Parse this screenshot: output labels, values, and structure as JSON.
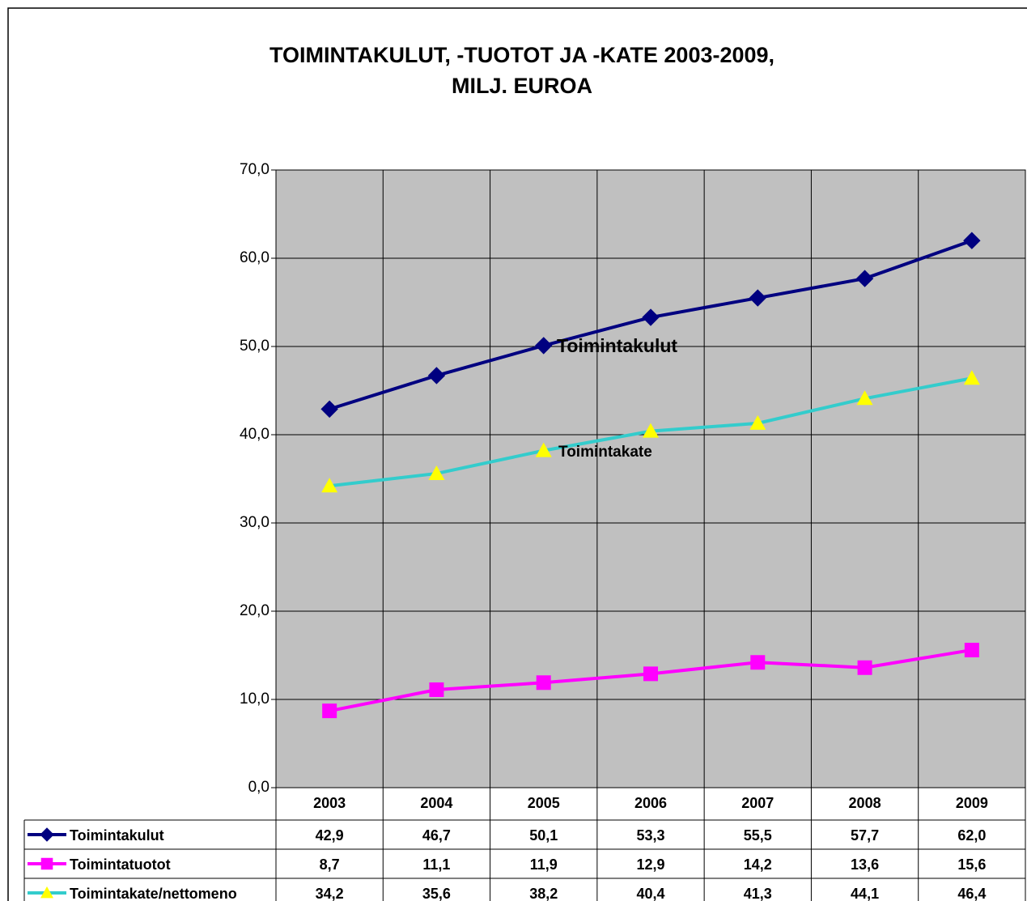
{
  "chart_data": {
    "type": "line",
    "title": [
      "TOIMINTAKULUT, -TUOTOT JA -KATE 2003-2009,",
      "MILJ. EUROA"
    ],
    "categories": [
      "2003",
      "2004",
      "2005",
      "2006",
      "2007",
      "2008",
      "2009"
    ],
    "series": [
      {
        "name": "Toimintakulut",
        "color": "#000080",
        "marker": "diamond",
        "marker_color": "#000080",
        "values": [
          42.9,
          46.7,
          50.1,
          53.3,
          55.5,
          57.7,
          62.0
        ],
        "value_labels": [
          "42,9",
          "46,7",
          "50,1",
          "53,3",
          "55,5",
          "57,7",
          "62,0"
        ]
      },
      {
        "name": "Toimintatuotot",
        "color": "#ff00ff",
        "marker": "square",
        "marker_color": "#ff00ff",
        "values": [
          8.7,
          11.1,
          11.9,
          12.9,
          14.2,
          13.6,
          15.6
        ],
        "value_labels": [
          "8,7",
          "11,1",
          "11,9",
          "12,9",
          "14,2",
          "13,6",
          "15,6"
        ]
      },
      {
        "name": "Toimintakate/nettomeno",
        "color": "#33cccc",
        "marker": "triangle",
        "marker_color": "#ffff00",
        "values": [
          34.2,
          35.6,
          38.2,
          40.4,
          41.3,
          44.1,
          46.4
        ],
        "value_labels": [
          "34,2",
          "35,6",
          "38,2",
          "40,4",
          "41,3",
          "44,1",
          "46,4"
        ]
      }
    ],
    "annotations": [
      "Toimintakulut",
      "Toimintakate"
    ],
    "ylim": [
      0,
      70
    ],
    "yticks": [
      {
        "value": 0,
        "label": "0,0"
      },
      {
        "value": 10,
        "label": "10,0"
      },
      {
        "value": 20,
        "label": "20,0"
      },
      {
        "value": 30,
        "label": "30,0"
      },
      {
        "value": 40,
        "label": "40,0"
      },
      {
        "value": 50,
        "label": "50,0"
      },
      {
        "value": 60,
        "label": "60,0"
      },
      {
        "value": 70,
        "label": "70,0"
      }
    ],
    "grid": true,
    "plot_background": "#c0c0c0"
  }
}
